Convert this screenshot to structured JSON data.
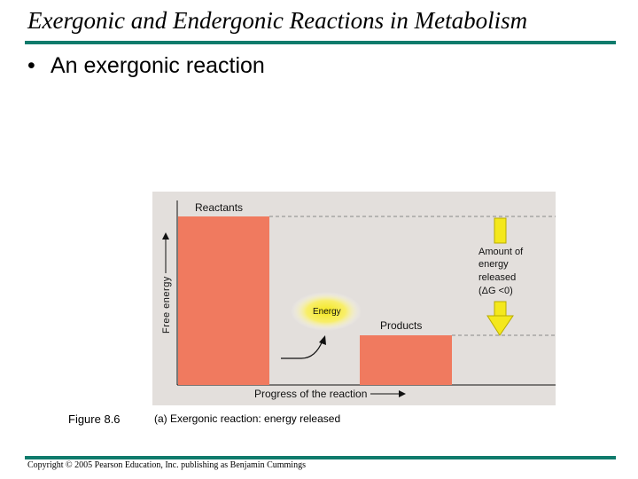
{
  "slide": {
    "title": "Exergonic and Endergonic Reactions in Metabolism",
    "bullet": "An exergonic reaction"
  },
  "diagram": {
    "y_axis_label": "Free energy",
    "x_axis_label": "Progress of the reaction",
    "reactants_label": "Reactants",
    "products_label": "Products",
    "energy_label": "Energy",
    "released_label_lines": [
      "Amount of",
      "energy",
      "released",
      "(ΔG <0)"
    ],
    "figure_label": "Figure 8.6",
    "caption": "(a) Exergonic reaction: energy released",
    "colors": {
      "panel": "#e3dfdc",
      "bar": "#f07a5f",
      "arrow": "#f4e81c",
      "energy_glow": "#f4e81c",
      "rule": "#0f7b6c"
    }
  },
  "footer": {
    "copyright": "Copyright © 2005 Pearson Education, Inc. publishing as Benjamin Cummings"
  }
}
